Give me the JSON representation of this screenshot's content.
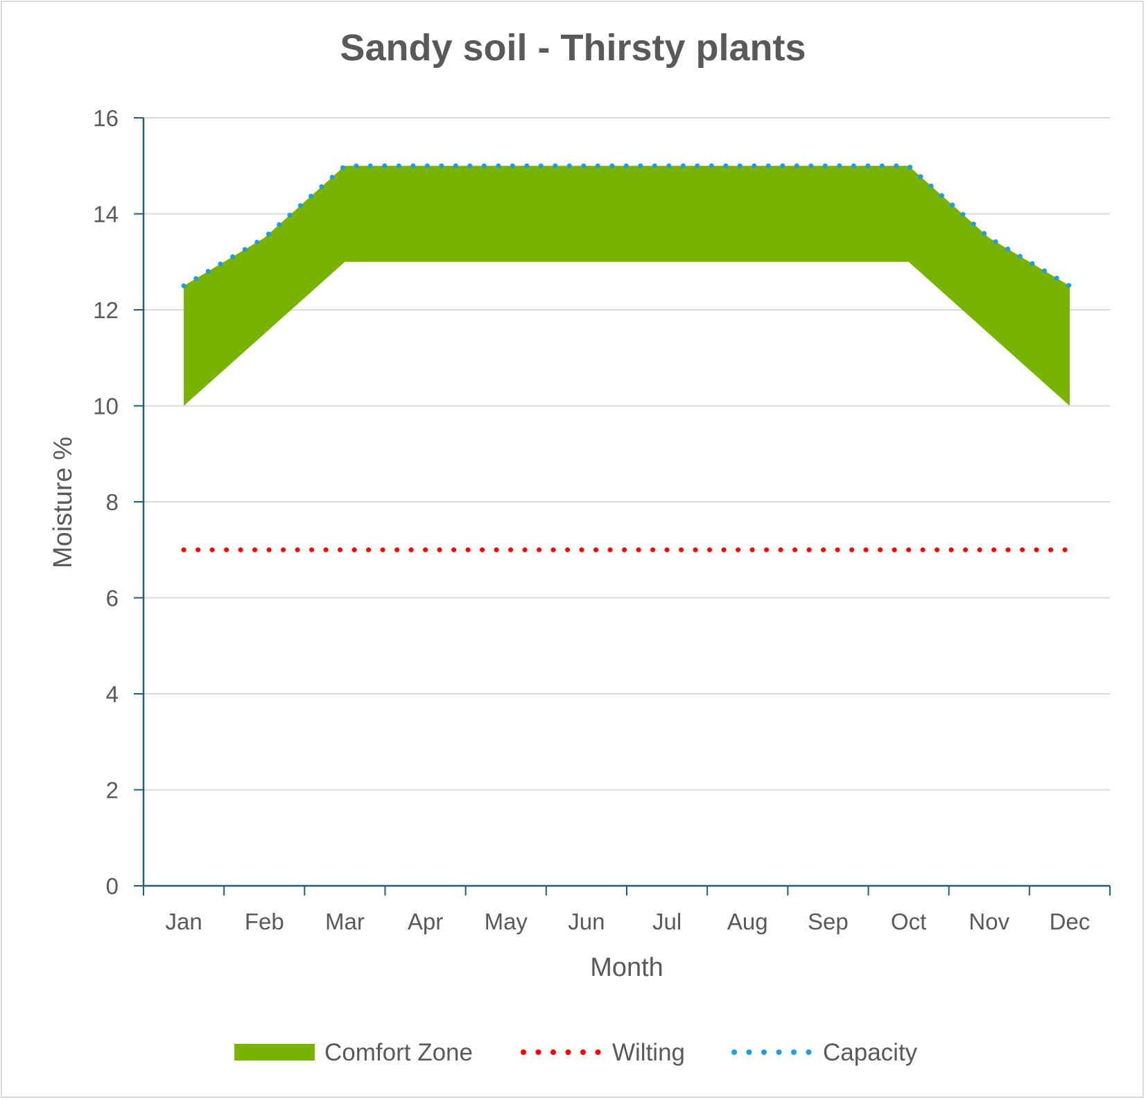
{
  "chart_data": {
    "type": "area",
    "title": "Sandy soil - Thirsty plants",
    "xlabel": "Month",
    "ylabel": "Moisture %",
    "categories": [
      "Jan",
      "Feb",
      "Mar",
      "Apr",
      "May",
      "Jun",
      "Jul",
      "Aug",
      "Sep",
      "Oct",
      "Nov",
      "Dec"
    ],
    "ylim": [
      0,
      16
    ],
    "yticks": [
      0,
      2,
      4,
      6,
      8,
      10,
      12,
      14,
      16
    ],
    "grid": true,
    "legend_position": "bottom",
    "series": [
      {
        "name": "Comfort Zone",
        "kind": "band",
        "color": "#77b300",
        "lower": [
          10,
          11.5,
          13,
          13,
          13,
          13,
          13,
          13,
          13,
          13,
          11.5,
          10
        ],
        "upper": [
          12.5,
          13.5,
          15,
          15,
          15,
          15,
          15,
          15,
          15,
          15,
          13.5,
          12.5
        ]
      },
      {
        "name": "Wilting",
        "kind": "dotted-line",
        "color": "#ff0000",
        "values": [
          7,
          7,
          7,
          7,
          7,
          7,
          7,
          7,
          7,
          7,
          7,
          7
        ]
      },
      {
        "name": "Capacity",
        "kind": "dotted-line",
        "color": "#1f9ede",
        "values": [
          12.5,
          13.5,
          15,
          15,
          15,
          15,
          15,
          15,
          15,
          15,
          13.5,
          12.5
        ]
      }
    ]
  }
}
